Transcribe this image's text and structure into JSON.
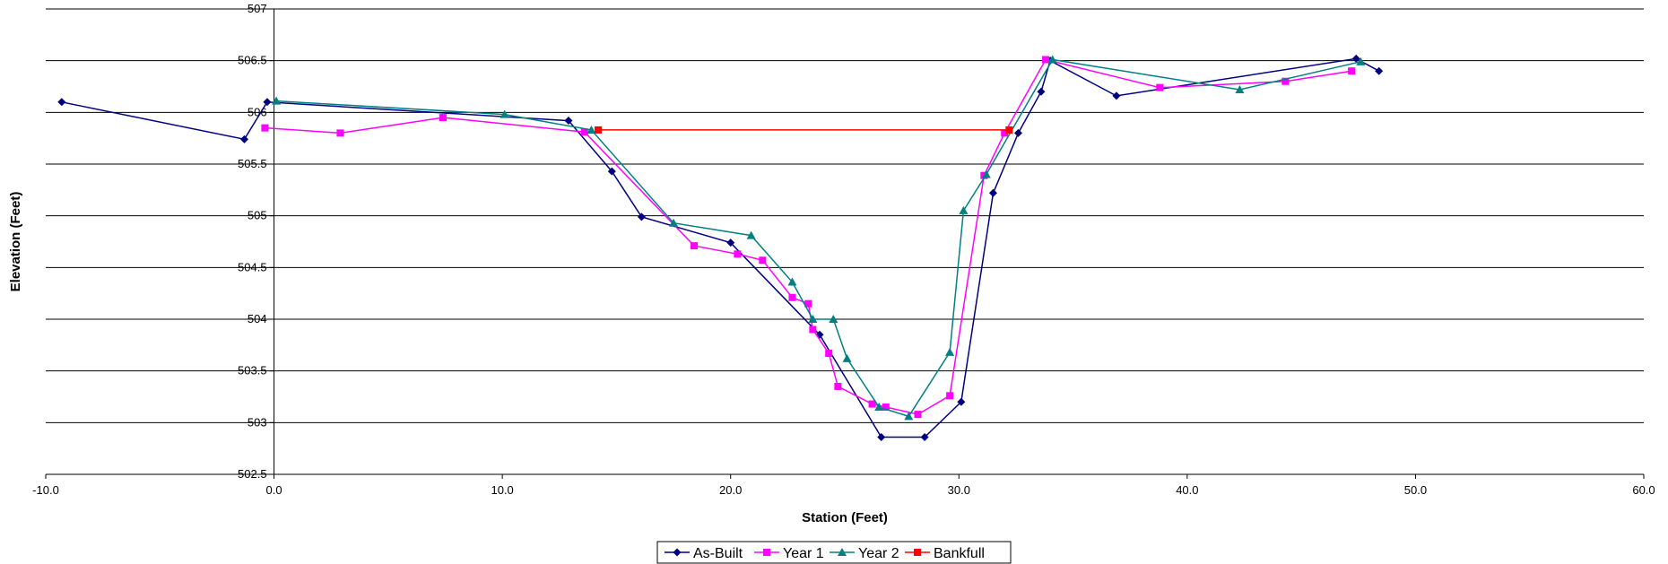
{
  "chart_data": {
    "type": "line",
    "title": "",
    "xlabel": "Station (Feet)",
    "ylabel": "Elevation (Feet)",
    "xlim": [
      -10,
      60
    ],
    "ylim": [
      502.5,
      507
    ],
    "xticks": [
      -10,
      0,
      10,
      20,
      30,
      40,
      50,
      60
    ],
    "xtick_labels": [
      "-10.0",
      "0.0",
      "10.0",
      "20.0",
      "30.0",
      "40.0",
      "50.0",
      "60.0"
    ],
    "yticks": [
      502.5,
      503,
      503.5,
      504,
      504.5,
      505,
      505.5,
      506,
      506.5,
      507
    ],
    "ytick_labels": [
      "502.5",
      "503",
      "503.5",
      "504",
      "504.5",
      "505",
      "505.5",
      "506",
      "506.5",
      "507"
    ],
    "grid": "horizontal",
    "legend_position": "bottom-center",
    "series": [
      {
        "name": "As-Built",
        "color": "#000080",
        "marker": "diamond",
        "points": [
          [
            -9.3,
            506.1
          ],
          [
            -1.3,
            505.74
          ],
          [
            -0.3,
            506.1
          ],
          [
            12.9,
            505.92
          ],
          [
            14.8,
            505.43
          ],
          [
            16.1,
            504.99
          ],
          [
            20.0,
            504.74
          ],
          [
            23.9,
            503.85
          ],
          [
            26.6,
            502.86
          ],
          [
            28.5,
            502.86
          ],
          [
            30.1,
            503.2
          ],
          [
            31.5,
            505.22
          ],
          [
            32.6,
            505.8
          ],
          [
            33.6,
            506.2
          ],
          [
            34.0,
            506.5
          ],
          [
            36.9,
            506.16
          ],
          [
            47.4,
            506.52
          ],
          [
            48.4,
            506.4
          ]
        ]
      },
      {
        "name": "Year 1",
        "color": "#ff00ff",
        "marker": "square",
        "points": [
          [
            -0.4,
            505.85
          ],
          [
            2.9,
            505.8
          ],
          [
            7.4,
            505.95
          ],
          [
            13.6,
            505.81
          ],
          [
            18.4,
            504.71
          ],
          [
            20.3,
            504.63
          ],
          [
            21.4,
            504.57
          ],
          [
            22.7,
            504.21
          ],
          [
            23.4,
            504.15
          ],
          [
            23.6,
            503.9
          ],
          [
            24.3,
            503.67
          ],
          [
            24.7,
            503.35
          ],
          [
            26.2,
            503.18
          ],
          [
            26.8,
            503.15
          ],
          [
            28.2,
            503.08
          ],
          [
            29.6,
            503.26
          ],
          [
            31.1,
            505.39
          ],
          [
            32.0,
            505.8
          ],
          [
            33.8,
            506.51
          ],
          [
            38.8,
            506.24
          ],
          [
            44.3,
            506.3
          ],
          [
            47.2,
            506.4
          ]
        ]
      },
      {
        "name": "Year 2",
        "color": "#008080",
        "marker": "triangle",
        "points": [
          [
            0.1,
            506.11
          ],
          [
            10.1,
            505.98
          ],
          [
            13.9,
            505.83
          ],
          [
            17.5,
            504.93
          ],
          [
            20.9,
            504.81
          ],
          [
            22.7,
            504.36
          ],
          [
            23.6,
            504.0
          ],
          [
            24.5,
            504.0
          ],
          [
            25.1,
            503.62
          ],
          [
            26.5,
            503.15
          ],
          [
            27.8,
            503.06
          ],
          [
            29.6,
            503.68
          ],
          [
            30.2,
            505.05
          ],
          [
            31.2,
            505.4
          ],
          [
            34.1,
            506.51
          ],
          [
            42.3,
            506.22
          ],
          [
            47.6,
            506.49
          ]
        ]
      },
      {
        "name": "Bankfull",
        "color": "#ff0000",
        "marker": "square",
        "points": [
          [
            14.2,
            505.83
          ],
          [
            32.2,
            505.83
          ]
        ]
      }
    ]
  }
}
